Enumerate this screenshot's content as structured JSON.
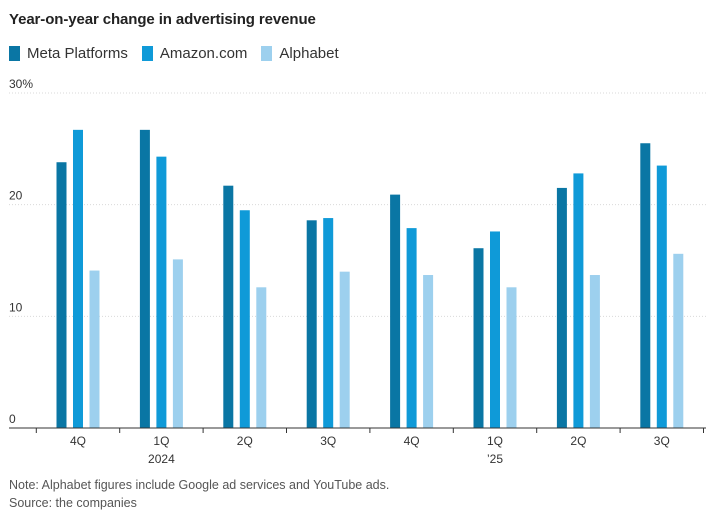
{
  "chart_data": {
    "type": "bar",
    "title": "Year-on-year change in advertising revenue",
    "categories": [
      "4Q",
      "1Q",
      "2Q",
      "3Q",
      "4Q",
      "1Q",
      "2Q",
      "3Q"
    ],
    "category_sublabels": [
      "",
      "2024",
      "",
      "",
      "",
      "’25",
      "",
      ""
    ],
    "series": [
      {
        "name": "Meta Platforms",
        "color": "#0a76a4",
        "values": [
          23.8,
          26.7,
          21.7,
          18.6,
          20.9,
          16.1,
          21.5,
          25.5
        ]
      },
      {
        "name": "Amazon.com",
        "color": "#0f9ad8",
        "values": [
          26.7,
          24.3,
          19.5,
          18.8,
          17.9,
          17.6,
          22.8,
          23.5
        ]
      },
      {
        "name": "Alphabet",
        "color": "#9dd0ee",
        "values": [
          14.1,
          15.1,
          12.6,
          14.0,
          13.7,
          12.6,
          13.7,
          15.6
        ]
      }
    ],
    "ylim": [
      0,
      30
    ],
    "yticks": [
      {
        "value": 30,
        "label": "30%"
      },
      {
        "value": 20,
        "label": "20"
      },
      {
        "value": 10,
        "label": "10"
      },
      {
        "value": 0,
        "label": "0"
      }
    ],
    "xlabel": "",
    "ylabel": "",
    "grid": true,
    "legend_position": "top-left"
  },
  "note": "Note: Alphabet figures include Google ad services and YouTube ads.",
  "source": "Source: the companies"
}
